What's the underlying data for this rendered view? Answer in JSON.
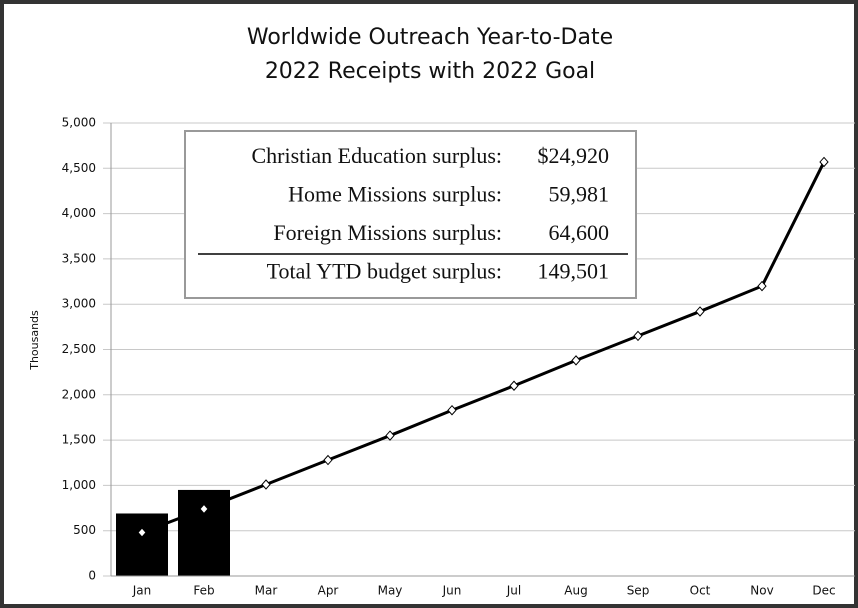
{
  "chart_data": {
    "type": "bar",
    "title": "Worldwide Outreach Year-to-Date",
    "subtitle": "2022 Receipts with 2022 Goal",
    "y_label": "Thousands",
    "categories": [
      "Jan",
      "Feb",
      "Mar",
      "Apr",
      "May",
      "Jun",
      "Jul",
      "Aug",
      "Sep",
      "Oct",
      "Nov",
      "Dec"
    ],
    "series": [
      {
        "type": "bar",
        "color": "#000000",
        "values": [
          690,
          950,
          null,
          null,
          null,
          null,
          null,
          null,
          null,
          null,
          null,
          null
        ]
      },
      {
        "type": "line",
        "color": "#000000",
        "values": [
          480,
          740,
          1010,
          1280,
          1550,
          1830,
          2100,
          2380,
          2650,
          2920,
          3200,
          4570
        ]
      }
    ],
    "ylim": [
      0,
      5000
    ],
    "yticks": [
      0,
      500,
      {
        "value": 1000,
        "label": "1,000"
      },
      {
        "value": 1500,
        "label": "1,500"
      },
      {
        "value": 2000,
        "label": "2,000"
      },
      {
        "value": 2500,
        "label": "2,500"
      },
      {
        "value": 3000,
        "label": "3,000"
      },
      {
        "value": 3500,
        "label": "3,500"
      },
      {
        "value": 4000,
        "label": "4,000"
      },
      {
        "value": 4500,
        "label": "4,500"
      },
      {
        "value": 5000,
        "label": "5,000"
      }
    ],
    "grid": true,
    "annotation_table": [
      {
        "label": "Christian Education surplus:",
        "value": "$24,920"
      },
      {
        "label": "Home Missions surplus:",
        "value": "59,981"
      },
      {
        "label": "Foreign Missions surplus:",
        "value": "64,600"
      },
      {
        "label": "Total YTD budget surplus:",
        "value": "149,501"
      }
    ]
  }
}
